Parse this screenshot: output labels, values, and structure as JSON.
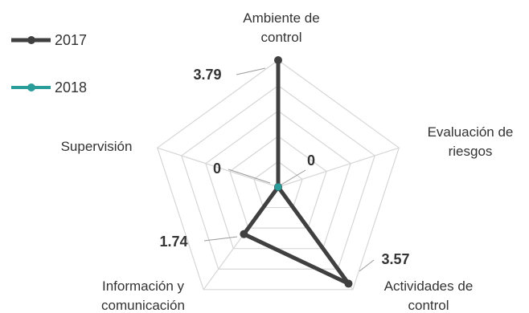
{
  "chart_data": {
    "type": "radar",
    "title": "",
    "axes": [
      [
        "Ambiente de",
        "control"
      ],
      [
        "Evaluación de",
        "riesgos"
      ],
      [
        "Actividades de",
        "control"
      ],
      [
        "Información y",
        "comunicación"
      ],
      [
        "Supervisión"
      ]
    ],
    "axis_max": 3.79,
    "grid_levels": 5,
    "grid": true,
    "legend_position": "top-left",
    "series": [
      {
        "name": "2017",
        "color": "#404040",
        "values": [
          3.79,
          0,
          3.57,
          1.74,
          0
        ]
      },
      {
        "name": "2018",
        "color": "#2a9d9a",
        "values": [
          0,
          0,
          0,
          0,
          0
        ]
      }
    ],
    "data_labels": [
      {
        "axis": 0,
        "text": "3.79"
      },
      {
        "axis": 1,
        "text": "0"
      },
      {
        "axis": 2,
        "text": "3.57"
      },
      {
        "axis": 3,
        "text": "1.74"
      },
      {
        "axis": 4,
        "text": "0"
      }
    ]
  }
}
